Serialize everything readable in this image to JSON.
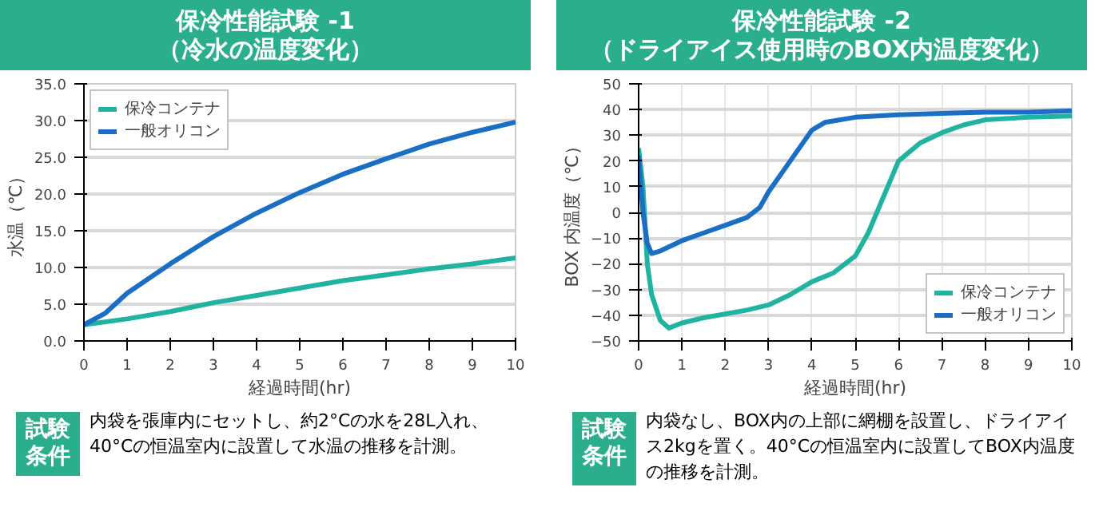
{
  "chart_data": [
    {
      "type": "line",
      "title": "保冷性能試験 -1",
      "subtitle": "（冷水の温度変化）",
      "xlabel": "経過時間(hr)",
      "ylabel": "水温（℃）",
      "xlim": [
        0,
        10
      ],
      "xticks": [
        0,
        1,
        2,
        3,
        4,
        5,
        6,
        7,
        8,
        9,
        10
      ],
      "ylim": [
        0,
        35
      ],
      "yticks": [
        {
          "value": 0,
          "label": "0.0"
        },
        {
          "value": 5,
          "label": "5.0"
        },
        {
          "value": 10,
          "label": "10.0"
        },
        {
          "value": 15,
          "label": "15.0"
        },
        {
          "value": 20,
          "label": "20.0"
        },
        {
          "value": 25,
          "label": "25.0"
        },
        {
          "value": 30,
          "label": "30.0"
        },
        {
          "value": 35,
          "label": "35.0"
        }
      ],
      "grid": "y",
      "legend": "top left",
      "line_style": "solid",
      "series": [
        {
          "name": "保冷コンテナ",
          "color": "#20b3a0",
          "x": [
            0,
            1,
            2,
            3,
            4,
            5,
            6,
            7,
            8,
            9,
            10
          ],
          "values": [
            2.2,
            3.0,
            4.0,
            5.2,
            6.2,
            7.2,
            8.2,
            9.0,
            9.8,
            10.5,
            11.3
          ]
        },
        {
          "name": "一般オリコン",
          "color": "#1a6fc4",
          "x": [
            0,
            0.5,
            1,
            2,
            3,
            4,
            5,
            6,
            7,
            8,
            9,
            10
          ],
          "values": [
            2.2,
            3.8,
            6.5,
            10.5,
            14.2,
            17.4,
            20.2,
            22.7,
            24.8,
            26.8,
            28.4,
            29.8
          ]
        }
      ],
      "annotations": [
        "試験条件",
        "内袋を張庫内にセットし、約2°Cの水を28L入れ、40°Cの恒温室内に設置して水温の推移を計測。"
      ]
    },
    {
      "type": "line",
      "title": "保冷性能試験 -2",
      "subtitle": "（ドライアイス使用時のBOX内温度変化）",
      "xlabel": "経過時間(hr)",
      "ylabel": "BOX 内温度（℃）",
      "xlim": [
        0,
        10
      ],
      "xticks": [
        0,
        1,
        2,
        3,
        4,
        5,
        6,
        7,
        8,
        9,
        10
      ],
      "ylim": [
        -50,
        50
      ],
      "yticks": [
        -50,
        -40,
        -30,
        -20,
        -10,
        0,
        10,
        20,
        30,
        40,
        50
      ],
      "grid": true,
      "legend": "bottom right",
      "line_style": "solid",
      "series": [
        {
          "name": "保冷コンテナ",
          "color": "#20b3a0",
          "x": [
            0,
            0.1,
            0.2,
            0.3,
            0.5,
            0.7,
            1,
            1.5,
            2,
            2.5,
            3,
            3.5,
            4,
            4.5,
            5,
            5.3,
            5.5,
            5.8,
            6,
            6.5,
            7,
            7.5,
            8,
            9,
            10
          ],
          "values": [
            25,
            10,
            -20,
            -32,
            -42,
            -45,
            -43,
            -41,
            -39.5,
            -38,
            -36,
            -32,
            -27,
            -23.5,
            -17,
            -8,
            0,
            12,
            20,
            27,
            31,
            34,
            36,
            37,
            37.5
          ]
        },
        {
          "name": "一般オリコン",
          "color": "#1a6fc4",
          "x": [
            0,
            0.1,
            0.2,
            0.3,
            0.5,
            1,
            1.5,
            2,
            2.5,
            2.8,
            3,
            3.5,
            4,
            4.3,
            5,
            6,
            7,
            8,
            9,
            10
          ],
          "values": [
            22,
            0,
            -12,
            -16,
            -15,
            -11,
            -8,
            -5,
            -2,
            2,
            8,
            20,
            32,
            35,
            37,
            38,
            38.5,
            39,
            39,
            39.5
          ]
        }
      ],
      "annotations": [
        "試験条件",
        "内袋なし、BOX内の上部に網棚を設置し、ドライアイス2kgを置く。40°Cの恒温室内に設置してBOX内温度の推移を計測。"
      ]
    }
  ]
}
